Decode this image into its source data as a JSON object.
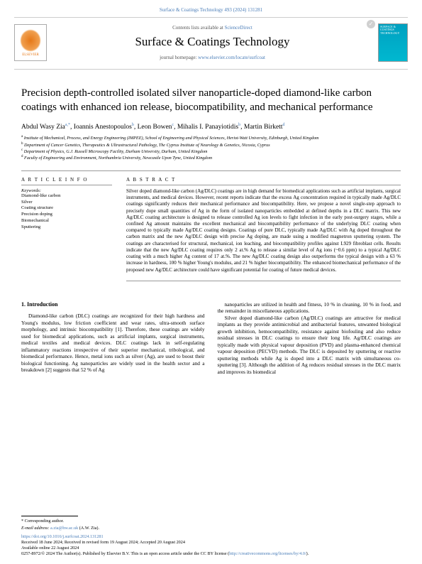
{
  "header": {
    "citation": "Surface & Coatings Technology 493 (2024) 131281",
    "contents_prefix": "Contents lists available at ",
    "contents_link": "ScienceDirect",
    "journal_title": "Surface & Coatings Technology",
    "homepage_prefix": "journal homepage: ",
    "homepage_link": "www.elsevier.com/locate/surfcoat",
    "publisher": "ELSEVIER",
    "cover_text": "SURFACE & COATINGS TECHNOLOGY"
  },
  "article": {
    "title": "Precision depth-controlled isolated silver nanoparticle-doped diamond-like carbon coatings with enhanced ion release, biocompatibility, and mechanical performance",
    "authors_html": "Abdul Wasy Zia",
    "author_sup1": "a,*",
    "author2": ", Ioannis Anestopoulos",
    "author_sup2": "b",
    "author3": ", Leon Bowen",
    "author_sup3": "c",
    "author4": ", Mihalis I. Panayiotidis",
    "author_sup4": "b",
    "author5": ", Martin Birkett",
    "author_sup5": "d"
  },
  "affiliations": {
    "a": "Institute of Mechanical, Process, and Energy Engineering (IMPEE), School of Engineering and Physical Sciences, Heriot-Watt University, Edinburgh, United Kingdom",
    "b": "Department of Cancer Genetics, Therapeutics & Ultrastructural Pathology, The Cyprus Institute of Neurology & Genetics, Nicosia, Cyprus",
    "c": "Department of Physics, G.J. Russell Microscopy Facility, Durham University, Durham, United Kingdom",
    "d": "Faculty of Engineering and Environment, Northumbria University, Newcastle Upon Tyne, United Kingdom"
  },
  "info": {
    "heading": "A R T I C L E  I N F O",
    "keywords_label": "Keywords:",
    "keywords": "Diamond-like carbon\nSilver\nCoating structure\nPrecision doping\nBiomechanical\nSputtering"
  },
  "abstract": {
    "heading": "A B S T R A C T",
    "text": "Silver doped diamond-like carbon (Ag/DLC) coatings are in high demand for biomedical applications such as artificial implants, surgical instruments, and medical devices. However, recent reports indicate that the excess Ag concentration required in typically made Ag/DLC coatings significantly reduces their mechanical performance and biocompatibility. Here, we propose a novel single-step approach to precisely dope small quantities of Ag in the form of isolated nanoparticles embedded at defined depths in a DLC matrix. This new Ag/DLC coating architecture is designed to release controlled Ag ion levels to fight infection in the early post-surgery stages, while a confined Ag amount maintains the excellent mechanical and biocompatibility performance of the underlying DLC coating when compared to typically made Ag/DLC coating designs. Coatings of pure DLC, typically made Ag/DLC with Ag doped throughout the carbon matrix and the new Ag/DLC design with precise Ag doping, are made using a modified magnetron sputtering system. The coatings are characterised for structural, mechanical, ion leaching, and biocompatibility profiles against L929 fibroblast cells. Results indicate that the new Ag/DLC coating requires only 2 at.% Ag to release a similar level of Ag ions (~0.6 ppm) to a typical Ag/DLC coating with a much higher Ag content of 17 at.%. The new Ag/DLC coating design also outperforms the typical design with a 63 % increase in hardness, 100 % higher Young's modulus, and 21 % higher biocompatibility. The enhanced biomechanical performance of the proposed new Ag/DLC architecture could have significant potential for coating of future medical devices."
  },
  "body": {
    "section_number": "1.",
    "section_title": "Introduction",
    "col1_p1": "Diamond-like carbon (DLC) coatings are recognized for their high hardness and Young's modulus, low friction coefficient and wear rates, ultra-smooth surface morphology, and intrinsic biocompatibility [1]. Therefore, these coatings are widely used for biomedical applications, such as artificial implants, surgical instruments, medical textiles and medical devices. DLC coatings lack in self-regulating inflammatory reactions irrespective of their superior mechanical, tribological, and biomedical performance. Hence, metal ions such as silver (Ag), are used to boost their biological functioning. Ag nanoparticles are widely used in the health sector and a breakdown [2] suggests that 52 % of Ag",
    "col2_p1": "nanoparticles are utilized in health and fitness, 10 % in cleaning, 10 % in food, and the remainder in miscellaneous applications.",
    "col2_p2": "Silver doped diamond-like carbon (Ag/DLC) coatings are attractive for medical implants as they provide antimicrobial and antibacterial features, unwanted biological growth inhibition, hemocompatibility, resistance against biofouling and also reduce residual stresses in DLC coatings to ensure their long life. Ag/DLC coatings are typically made with physical vapour deposition (PVD) and plasma-enhanced chemical vapour deposition (PECVD) methods. The DLC is deposited by sputtering or reactive sputtering methods while Ag is doped into a DLC matrix with simultaneous co-sputtering [3]. Although the addition of Ag reduces residual stresses in the DLC matrix and improves its biomedical"
  },
  "footer": {
    "corr_label": "* Corresponding author.",
    "email_label": "E-mail address: ",
    "email": "a.zia@hw.ac.uk",
    "email_suffix": " (A.W. Zia).",
    "doi": "https://doi.org/10.1016/j.surfcoat.2024.131281",
    "received": "Received 18 June 2024; Received in revised form 19 August 2024; Accepted 20 August 2024",
    "available": "Available online 22 August 2024",
    "copyright_prefix": "0257-8972/© 2024 The Author(s). Published by Elsevier B.V. This is an open access article under the CC BY license (",
    "cc_link": "http://creativecommons.org/licenses/by/4.0/",
    "copyright_suffix": ")."
  },
  "refs": {
    "r1": "1",
    "r2": "2",
    "r3": "3"
  }
}
